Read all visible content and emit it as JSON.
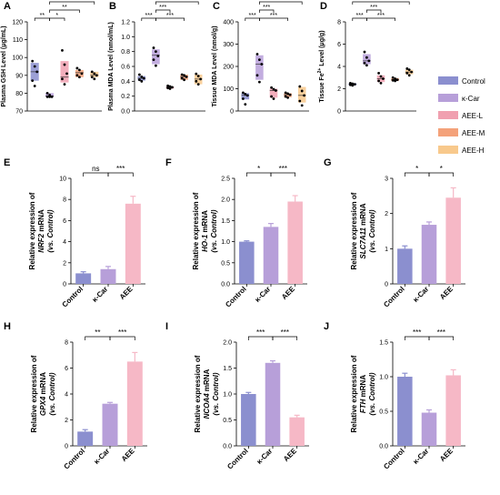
{
  "colors": {
    "control": "#8b8fcf",
    "kcar": "#b79fd9",
    "aee": "#f6b8c6",
    "aee_l": "#f0a0b0",
    "aee_m": "#f4a27a",
    "aee_h": "#f8c98c",
    "axis": "#000000",
    "point": "#000000"
  },
  "legend": {
    "items": [
      {
        "label": "Control",
        "color": "#8b8fcf"
      },
      {
        "label": "κ-Car",
        "color": "#b79fd9"
      },
      {
        "label": "AEE-L",
        "color": "#f0a0b0"
      },
      {
        "label": "AEE-M",
        "color": "#f4a27a"
      },
      {
        "label": "AEE-H",
        "color": "#f8c98c"
      }
    ]
  },
  "chart_data": [
    {
      "id": "A",
      "type": "box",
      "letter": "A",
      "ylabel": "Plasma GSH Level (μg/mL)",
      "ylim": [
        70,
        120
      ],
      "yticks": [
        "70",
        "80",
        "90",
        "100",
        "110",
        "120"
      ],
      "groups": [
        "Control",
        "κ-Car",
        "AEE-L",
        "AEE-M",
        "AEE-H"
      ],
      "boxes": [
        {
          "q1": 87,
          "median": 92,
          "q3": 97,
          "points": [
            98,
            95,
            92,
            87,
            84
          ]
        },
        {
          "q1": 78,
          "median": 78.5,
          "q3": 80,
          "points": [
            80,
            79,
            78,
            78,
            78
          ]
        },
        {
          "q1": 86,
          "median": 89,
          "q3": 98,
          "points": [
            104,
            96,
            91,
            88,
            85
          ]
        },
        {
          "q1": 89,
          "median": 91.5,
          "q3": 93,
          "points": [
            94,
            93,
            91,
            90,
            89
          ]
        },
        {
          "q1": 89,
          "median": 90,
          "q3": 92,
          "points": [
            92,
            91,
            90,
            89,
            88
          ]
        }
      ],
      "sig": [
        {
          "from": 0,
          "to": 1,
          "label": "**",
          "level": 0
        },
        {
          "from": 1,
          "to": 2,
          "label": "*",
          "level": 0
        },
        {
          "from": 1,
          "to": 3,
          "label": "**",
          "level": 1
        },
        {
          "from": 1,
          "to": 4,
          "label": "**",
          "level": 2
        }
      ]
    },
    {
      "id": "B",
      "type": "box",
      "letter": "B",
      "ylabel": "Plasma MDA Level (nmol/mL)",
      "ylim": [
        0,
        1.2
      ],
      "yticks": [
        "0.0",
        "0.2",
        "0.4",
        "0.6",
        "0.8",
        "1.0",
        "1.2"
      ],
      "groups": [
        "Control",
        "κ-Car",
        "AEE-L",
        "AEE-M",
        "AEE-H"
      ],
      "boxes": [
        {
          "q1": 0.41,
          "median": 0.44,
          "q3": 0.47,
          "points": [
            0.49,
            0.46,
            0.44,
            0.42,
            0.4
          ]
        },
        {
          "q1": 0.63,
          "median": 0.75,
          "q3": 0.83,
          "points": [
            0.85,
            0.8,
            0.74,
            0.69,
            0.61
          ]
        },
        {
          "q1": 0.3,
          "median": 0.32,
          "q3": 0.33,
          "points": [
            0.34,
            0.33,
            0.32,
            0.31,
            0.3
          ]
        },
        {
          "q1": 0.42,
          "median": 0.46,
          "q3": 0.49,
          "points": [
            0.49,
            0.48,
            0.46,
            0.44,
            0.42
          ]
        },
        {
          "q1": 0.36,
          "median": 0.43,
          "q3": 0.49,
          "points": [
            0.5,
            0.47,
            0.43,
            0.4,
            0.36
          ]
        }
      ],
      "sig": [
        {
          "from": 0,
          "to": 1,
          "label": "***",
          "level": 0
        },
        {
          "from": 1,
          "to": 2,
          "label": "***",
          "level": 1
        },
        {
          "from": 1,
          "to": 3,
          "label": "***",
          "level": 0
        },
        {
          "from": 1,
          "to": 4,
          "label": "***",
          "level": 2
        }
      ]
    },
    {
      "id": "C",
      "type": "box",
      "letter": "C",
      "ylabel": "Tissue MDA Level (nmol/g)",
      "ylim": [
        0,
        400
      ],
      "yticks": [
        "0",
        "100",
        "200",
        "300",
        "400"
      ],
      "groups": [
        "Control",
        "κ-Car",
        "AEE-L",
        "AEE-M",
        "AEE-H"
      ],
      "boxes": [
        {
          "q1": 52,
          "median": 70,
          "q3": 80,
          "points": [
            82,
            76,
            70,
            55,
            30
          ]
        },
        {
          "q1": 140,
          "median": 210,
          "q3": 250,
          "points": [
            255,
            230,
            210,
            160,
            130
          ]
        },
        {
          "q1": 60,
          "median": 92,
          "q3": 100,
          "points": [
            105,
            98,
            92,
            65,
            55
          ]
        },
        {
          "q1": 62,
          "median": 73,
          "q3": 80,
          "points": [
            82,
            78,
            73,
            65,
            60
          ]
        },
        {
          "q1": 38,
          "median": 70,
          "q3": 108,
          "points": [
            110,
            90,
            70,
            45,
            25
          ]
        }
      ],
      "sig": [
        {
          "from": 0,
          "to": 1,
          "label": "***",
          "level": 0
        },
        {
          "from": 1,
          "to": 2,
          "label": "***",
          "level": 1
        },
        {
          "from": 1,
          "to": 3,
          "label": "***",
          "level": 0
        },
        {
          "from": 1,
          "to": 4,
          "label": "***",
          "level": 2
        }
      ]
    },
    {
      "id": "D",
      "type": "box",
      "letter": "D",
      "ylabel": "Tissue Fe2+ Level (μg/g)",
      "ylabel_parts": [
        "Tissue Fe",
        "2+",
        " Level (μg/g)"
      ],
      "ylim": [
        0,
        8
      ],
      "yticks": [
        "0",
        "2",
        "4",
        "6",
        "8"
      ],
      "groups": [
        "Control",
        "κ-Car",
        "AEE-L",
        "AEE-M",
        "AEE-H"
      ],
      "boxes": [
        {
          "q1": 2.3,
          "median": 2.4,
          "q3": 2.5,
          "points": [
            2.5,
            2.45,
            2.4,
            2.35,
            2.3
          ]
        },
        {
          "q1": 4.2,
          "median": 4.5,
          "q3": 5.1,
          "points": [
            5.3,
            4.8,
            4.5,
            4.3,
            4.1
          ]
        },
        {
          "q1": 2.6,
          "median": 2.9,
          "q3": 3.2,
          "points": [
            3.4,
            3.1,
            2.9,
            2.7,
            2.5
          ]
        },
        {
          "q1": 2.7,
          "median": 2.8,
          "q3": 2.95,
          "points": [
            3.0,
            2.9,
            2.8,
            2.75,
            2.7
          ]
        },
        {
          "q1": 3.3,
          "median": 3.5,
          "q3": 3.7,
          "points": [
            3.8,
            3.7,
            3.5,
            3.4,
            3.2
          ]
        }
      ],
      "sig": [
        {
          "from": 0,
          "to": 1,
          "label": "***",
          "level": 0
        },
        {
          "from": 1,
          "to": 2,
          "label": "***",
          "level": 1
        },
        {
          "from": 1,
          "to": 3,
          "label": "***",
          "level": 0
        },
        {
          "from": 0,
          "to": 4,
          "label": "**",
          "level": 2
        }
      ]
    },
    {
      "id": "E",
      "type": "bar",
      "letter": "E",
      "ylabel_lines": [
        [
          "Relative expression of"
        ],
        [
          "NRF2",
          " mRNA"
        ],
        [
          "(vs. Control)"
        ]
      ],
      "ylim": [
        0,
        10
      ],
      "yticks": [
        "0",
        "2",
        "4",
        "6",
        "8",
        "10"
      ],
      "categories": [
        "Control",
        "κ-Car",
        "AEE"
      ],
      "values": [
        1.0,
        1.4,
        7.6
      ],
      "errors": [
        0.15,
        0.25,
        0.7
      ],
      "sig": [
        {
          "from": 0,
          "to": 1,
          "label": "ns",
          "level": 0
        },
        {
          "from": 1,
          "to": 2,
          "label": "***",
          "level": 0
        }
      ]
    },
    {
      "id": "F",
      "type": "bar",
      "letter": "F",
      "ylabel_lines": [
        [
          "Relative expression of"
        ],
        [
          "HO-1",
          " mRNA"
        ],
        [
          "(vs. Control)"
        ]
      ],
      "ylim": [
        0,
        2.5
      ],
      "yticks": [
        "0.0",
        "0.5",
        "1.0",
        "1.5",
        "2.0",
        "2.5"
      ],
      "categories": [
        "Control",
        "κ-Car",
        "AEE"
      ],
      "values": [
        1.0,
        1.35,
        1.95
      ],
      "errors": [
        0.02,
        0.08,
        0.14
      ],
      "sig": [
        {
          "from": 0,
          "to": 1,
          "label": "*",
          "level": 0
        },
        {
          "from": 1,
          "to": 2,
          "label": "***",
          "level": 0
        }
      ]
    },
    {
      "id": "G",
      "type": "bar",
      "letter": "G",
      "ylabel_lines": [
        [
          "Relative expression of"
        ],
        [
          "SLC7A11",
          " mRNA"
        ],
        [
          "(vs. Control)"
        ]
      ],
      "ylim": [
        0,
        3
      ],
      "yticks": [
        "0",
        "1",
        "2",
        "3"
      ],
      "categories": [
        "Control",
        "κ-Car",
        "AEE"
      ],
      "values": [
        1.0,
        1.68,
        2.45
      ],
      "errors": [
        0.08,
        0.08,
        0.28
      ],
      "sig": [
        {
          "from": 0,
          "to": 1,
          "label": "*",
          "level": 0
        },
        {
          "from": 1,
          "to": 2,
          "label": "*",
          "level": 0
        }
      ]
    },
    {
      "id": "H",
      "type": "bar",
      "letter": "H",
      "ylabel_lines": [
        [
          "Relative expression of"
        ],
        [
          "GPX4",
          " mRNA"
        ],
        [
          "(vs. Control)"
        ]
      ],
      "ylim": [
        0,
        8
      ],
      "yticks": [
        "0",
        "2",
        "4",
        "6",
        "8"
      ],
      "categories": [
        "Control",
        "κ-Car",
        "AEE"
      ],
      "values": [
        1.1,
        3.25,
        6.5
      ],
      "errors": [
        0.15,
        0.1,
        0.7
      ],
      "sig": [
        {
          "from": 0,
          "to": 1,
          "label": "**",
          "level": 0
        },
        {
          "from": 1,
          "to": 2,
          "label": "***",
          "level": 0
        }
      ]
    },
    {
      "id": "I",
      "type": "bar",
      "letter": "I",
      "ylabel_lines": [
        [
          "Relative expression of"
        ],
        [
          "NCOA4",
          " mRNA"
        ],
        [
          "(vs. Control)"
        ]
      ],
      "ylim": [
        0,
        2.0
      ],
      "yticks": [
        "0.0",
        "0.5",
        "1.0",
        "1.5",
        "2.0"
      ],
      "categories": [
        "Control",
        "κ-Car",
        "AEE"
      ],
      "values": [
        1.0,
        1.6,
        0.55
      ],
      "errors": [
        0.03,
        0.04,
        0.04
      ],
      "sig": [
        {
          "from": 0,
          "to": 1,
          "label": "***",
          "level": 0
        },
        {
          "from": 1,
          "to": 2,
          "label": "***",
          "level": 0
        }
      ]
    },
    {
      "id": "J",
      "type": "bar",
      "letter": "J",
      "ylabel_lines": [
        [
          "Relative expression of"
        ],
        [
          "FTH",
          " mRNA"
        ],
        [
          "(vs. Control)"
        ]
      ],
      "ylim": [
        0,
        1.5
      ],
      "yticks": [
        "0.0",
        "0.5",
        "1.0",
        "1.5"
      ],
      "categories": [
        "Control",
        "κ-Car",
        "AEE"
      ],
      "values": [
        1.0,
        0.48,
        1.02
      ],
      "errors": [
        0.05,
        0.04,
        0.08
      ],
      "sig": [
        {
          "from": 0,
          "to": 1,
          "label": "***",
          "level": 0
        },
        {
          "from": 1,
          "to": 2,
          "label": "***",
          "level": 0
        }
      ]
    }
  ]
}
